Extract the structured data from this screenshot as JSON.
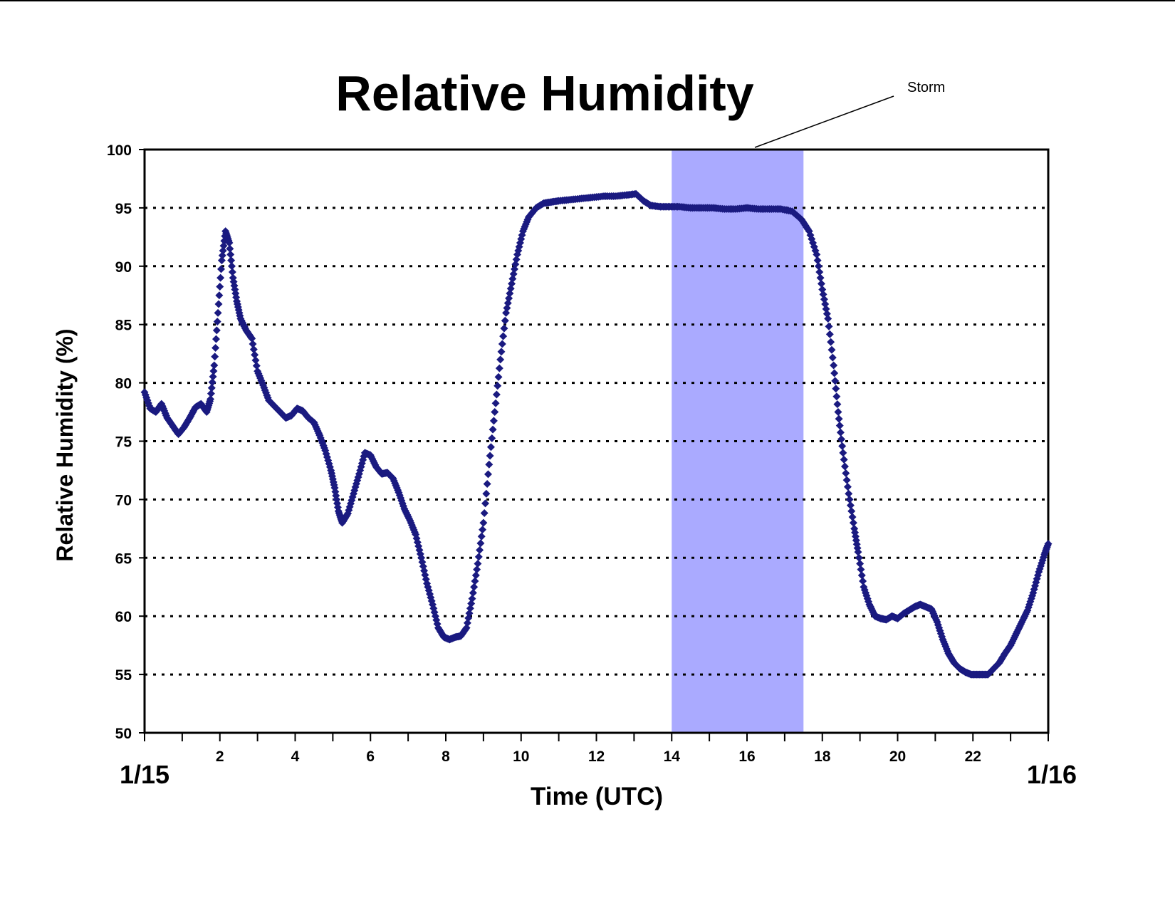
{
  "chart_data": {
    "type": "scatter",
    "title": "Relative Humidity",
    "xlabel": "Time (UTC)",
    "ylabel": "Relative Humidity (%)",
    "xlim": [
      0,
      24
    ],
    "ylim": [
      50,
      100
    ],
    "x_ticks": [
      2,
      4,
      6,
      8,
      10,
      12,
      14,
      16,
      18,
      20,
      22
    ],
    "x_tick_labels": [
      "2",
      "4",
      "6",
      "8",
      "10",
      "12",
      "14",
      "16",
      "18",
      "20",
      "22"
    ],
    "y_ticks": [
      50,
      55,
      60,
      65,
      70,
      75,
      80,
      85,
      90,
      95,
      100
    ],
    "y_tick_labels": [
      "50",
      "55",
      "60",
      "65",
      "70",
      "75",
      "80",
      "85",
      "90",
      "95",
      "100"
    ],
    "date_labels": {
      "start": "1/15",
      "end": "1/16"
    },
    "grid": "horizontal dotted",
    "marker": "diamond",
    "series_color": "#1a1a80",
    "shaded_region": {
      "label": "Storm",
      "x_start": 14.0,
      "x_end": 17.5,
      "color": "#aaaaff"
    },
    "series": [
      {
        "points": [
          [
            0.0,
            79.2
          ],
          [
            0.15,
            77.8
          ],
          [
            0.3,
            77.5
          ],
          [
            0.45,
            78.2
          ],
          [
            0.6,
            77.0
          ],
          [
            0.75,
            76.3
          ],
          [
            0.9,
            75.6
          ],
          [
            1.05,
            76.2
          ],
          [
            1.2,
            77.0
          ],
          [
            1.35,
            77.9
          ],
          [
            1.5,
            78.2
          ],
          [
            1.65,
            77.5
          ],
          [
            1.75,
            78.6
          ],
          [
            1.85,
            81.5
          ],
          [
            1.95,
            86.0
          ],
          [
            2.05,
            90.5
          ],
          [
            2.15,
            93.0
          ],
          [
            2.25,
            92.0
          ],
          [
            2.35,
            89.0
          ],
          [
            2.45,
            87.0
          ],
          [
            2.55,
            85.5
          ],
          [
            2.7,
            84.5
          ],
          [
            2.85,
            83.8
          ],
          [
            3.0,
            81.0
          ],
          [
            3.15,
            79.8
          ],
          [
            3.3,
            78.5
          ],
          [
            3.45,
            78.0
          ],
          [
            3.6,
            77.5
          ],
          [
            3.75,
            77.0
          ],
          [
            3.9,
            77.2
          ],
          [
            4.05,
            77.8
          ],
          [
            4.2,
            77.6
          ],
          [
            4.35,
            77.0
          ],
          [
            4.5,
            76.6
          ],
          [
            4.65,
            75.5
          ],
          [
            4.8,
            74.2
          ],
          [
            4.95,
            72.5
          ],
          [
            5.05,
            71.0
          ],
          [
            5.15,
            69.0
          ],
          [
            5.25,
            68.0
          ],
          [
            5.4,
            68.8
          ],
          [
            5.55,
            70.5
          ],
          [
            5.7,
            72.2
          ],
          [
            5.85,
            74.0
          ],
          [
            6.0,
            73.8
          ],
          [
            6.15,
            72.8
          ],
          [
            6.3,
            72.2
          ],
          [
            6.45,
            72.3
          ],
          [
            6.6,
            71.8
          ],
          [
            6.75,
            70.6
          ],
          [
            6.9,
            69.2
          ],
          [
            7.05,
            68.2
          ],
          [
            7.2,
            67.0
          ],
          [
            7.35,
            65.0
          ],
          [
            7.5,
            62.8
          ],
          [
            7.65,
            61.0
          ],
          [
            7.8,
            59.0
          ],
          [
            7.95,
            58.2
          ],
          [
            8.1,
            58.0
          ],
          [
            8.25,
            58.2
          ],
          [
            8.4,
            58.3
          ],
          [
            8.55,
            59.0
          ],
          [
            8.7,
            61.5
          ],
          [
            8.85,
            64.5
          ],
          [
            9.0,
            68.0
          ],
          [
            9.15,
            73.0
          ],
          [
            9.3,
            77.5
          ],
          [
            9.45,
            82.0
          ],
          [
            9.6,
            86.0
          ],
          [
            9.75,
            88.5
          ],
          [
            9.9,
            91.0
          ],
          [
            10.05,
            93.0
          ],
          [
            10.2,
            94.2
          ],
          [
            10.4,
            95.0
          ],
          [
            10.6,
            95.4
          ],
          [
            10.8,
            95.5
          ],
          [
            11.0,
            95.6
          ],
          [
            11.3,
            95.7
          ],
          [
            11.6,
            95.8
          ],
          [
            11.9,
            95.9
          ],
          [
            12.2,
            96.0
          ],
          [
            12.5,
            96.0
          ],
          [
            12.8,
            96.1
          ],
          [
            13.05,
            96.2
          ],
          [
            13.25,
            95.6
          ],
          [
            13.45,
            95.2
          ],
          [
            13.7,
            95.1
          ],
          [
            13.95,
            95.1
          ],
          [
            14.2,
            95.1
          ],
          [
            14.5,
            95.0
          ],
          [
            14.8,
            95.0
          ],
          [
            15.1,
            95.0
          ],
          [
            15.4,
            94.9
          ],
          [
            15.7,
            94.9
          ],
          [
            16.0,
            95.0
          ],
          [
            16.3,
            94.9
          ],
          [
            16.6,
            94.9
          ],
          [
            16.9,
            94.9
          ],
          [
            17.2,
            94.7
          ],
          [
            17.45,
            94.0
          ],
          [
            17.65,
            93.0
          ],
          [
            17.85,
            91.0
          ],
          [
            18.0,
            88.0
          ],
          [
            18.15,
            85.5
          ],
          [
            18.3,
            81.5
          ],
          [
            18.42,
            77.5
          ],
          [
            18.55,
            74.0
          ],
          [
            18.7,
            70.5
          ],
          [
            18.85,
            67.5
          ],
          [
            18.95,
            65.5
          ],
          [
            19.1,
            62.5
          ],
          [
            19.25,
            61.0
          ],
          [
            19.4,
            60.0
          ],
          [
            19.55,
            59.8
          ],
          [
            19.7,
            59.7
          ],
          [
            19.85,
            60.0
          ],
          [
            20.0,
            59.8
          ],
          [
            20.15,
            60.2
          ],
          [
            20.3,
            60.5
          ],
          [
            20.45,
            60.8
          ],
          [
            20.6,
            61.0
          ],
          [
            20.75,
            60.8
          ],
          [
            20.9,
            60.6
          ],
          [
            21.05,
            59.5
          ],
          [
            21.2,
            58.0
          ],
          [
            21.35,
            56.8
          ],
          [
            21.5,
            56.0
          ],
          [
            21.65,
            55.5
          ],
          [
            21.8,
            55.2
          ],
          [
            21.95,
            55.0
          ],
          [
            22.1,
            55.0
          ],
          [
            22.25,
            55.0
          ],
          [
            22.4,
            55.0
          ],
          [
            22.55,
            55.5
          ],
          [
            22.7,
            56.0
          ],
          [
            22.85,
            56.8
          ],
          [
            23.0,
            57.5
          ],
          [
            23.15,
            58.5
          ],
          [
            23.3,
            59.5
          ],
          [
            23.45,
            60.5
          ],
          [
            23.6,
            62.0
          ],
          [
            23.75,
            63.8
          ],
          [
            23.9,
            65.3
          ],
          [
            24.0,
            66.2
          ]
        ]
      }
    ]
  }
}
